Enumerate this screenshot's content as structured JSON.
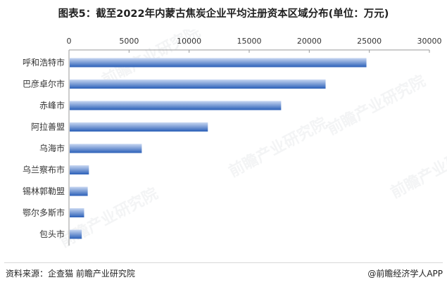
{
  "header": {
    "title": "图表5：截至2022年内蒙古焦炭企业平均注册资本区域分布(单位：万元)"
  },
  "footer": {
    "source": "资料来源：企查猫 前瞻产业研究院",
    "brand": "@前瞻经济学人APP"
  },
  "watermark": {
    "text": "前瞻产业研究院"
  },
  "colors": {
    "bar_dark": "#2a5fb8",
    "bar_light": "#c9d8f2",
    "axis": "#9a9a9a"
  },
  "chart_data": {
    "type": "bar",
    "orientation": "horizontal",
    "categories": [
      "呼和浩特市",
      "巴彦卓尔市",
      "赤峰市",
      "阿拉善盟",
      "乌海市",
      "乌兰察布市",
      "锡林郭勒盟",
      "鄂尔多斯市",
      "包头市"
    ],
    "values": [
      24700,
      21300,
      17600,
      11500,
      6000,
      1600,
      1500,
      1200,
      1000
    ],
    "xlim": [
      0,
      30000
    ],
    "xticks": [
      "0",
      "5000",
      "10000",
      "15000",
      "20000",
      "25000",
      "30000"
    ],
    "xtick_values": [
      0,
      5000,
      10000,
      15000,
      20000,
      25000,
      30000
    ],
    "grid": false,
    "xaxis_position": "top"
  }
}
